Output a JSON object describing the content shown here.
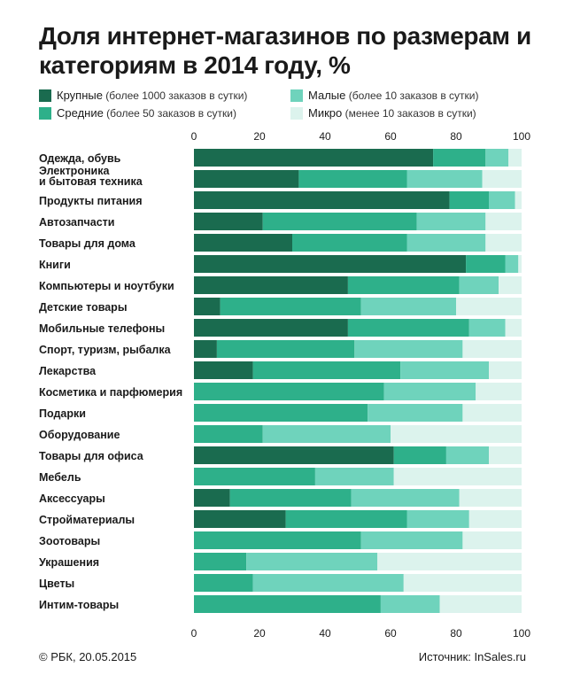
{
  "title": "Доля интернет-магазинов по размерам и категориям в 2014 году, %",
  "legend": [
    {
      "name": "Крупные",
      "note": "(более 1000 заказов в сутки)",
      "color": "#1a6b4f"
    },
    {
      "name": "Средние",
      "note": "(более 50 заказов в сутки)",
      "color": "#2eb08a"
    },
    {
      "name": "Малые",
      "note": "(более 10 заказов в сутки)",
      "color": "#6fd3bc"
    },
    {
      "name": "Микро",
      "note": "(менее 10 заказов в сутки)",
      "color": "#dcf3ed"
    }
  ],
  "chart_data": {
    "type": "bar",
    "orientation": "horizontal",
    "stacked": true,
    "xlim": [
      0,
      100
    ],
    "xticks": [
      0,
      20,
      40,
      60,
      80,
      100
    ],
    "categories": [
      [
        "Одежда, обувь"
      ],
      [
        "Электроника",
        "и бытовая техника"
      ],
      [
        "Продукты питания"
      ],
      [
        "Автозапчасти"
      ],
      [
        "Товары для дома"
      ],
      [
        "Книги"
      ],
      [
        "Компьютеры и ноутбуки"
      ],
      [
        "Детские товары"
      ],
      [
        "Мобильные телефоны"
      ],
      [
        "Спорт, туризм, рыбалка"
      ],
      [
        "Лекарства"
      ],
      [
        "Косметика и парфюмерия"
      ],
      [
        "Подарки"
      ],
      [
        "Оборудование"
      ],
      [
        "Товары для офиса"
      ],
      [
        "Мебель"
      ],
      [
        "Аксессуары"
      ],
      [
        "Стройматериалы"
      ],
      [
        "Зоотовары"
      ],
      [
        "Украшения"
      ],
      [
        "Цветы"
      ],
      [
        "Интим-товары"
      ]
    ],
    "series": [
      {
        "name": "Крупные",
        "values": [
          73,
          32,
          78,
          21,
          30,
          83,
          47,
          8,
          47,
          7,
          18,
          0,
          0,
          0,
          61,
          0,
          11,
          28,
          0,
          0,
          0,
          0
        ]
      },
      {
        "name": "Средние",
        "values": [
          16,
          33,
          12,
          47,
          35,
          12,
          34,
          43,
          37,
          42,
          45,
          58,
          53,
          21,
          16,
          37,
          37,
          37,
          51,
          16,
          18,
          57
        ]
      },
      {
        "name": "Малые",
        "values": [
          7,
          23,
          8,
          21,
          24,
          4,
          12,
          29,
          11,
          33,
          27,
          28,
          29,
          39,
          13,
          24,
          33,
          19,
          31,
          40,
          46,
          18
        ]
      },
      {
        "name": "Микро",
        "values": [
          4,
          12,
          2,
          11,
          11,
          1,
          7,
          20,
          5,
          18,
          10,
          14,
          18,
          40,
          10,
          39,
          19,
          16,
          18,
          44,
          36,
          25
        ]
      }
    ]
  },
  "footer": {
    "left": "© РБК, 20.05.2015",
    "right": "Источник: InSales.ru"
  }
}
